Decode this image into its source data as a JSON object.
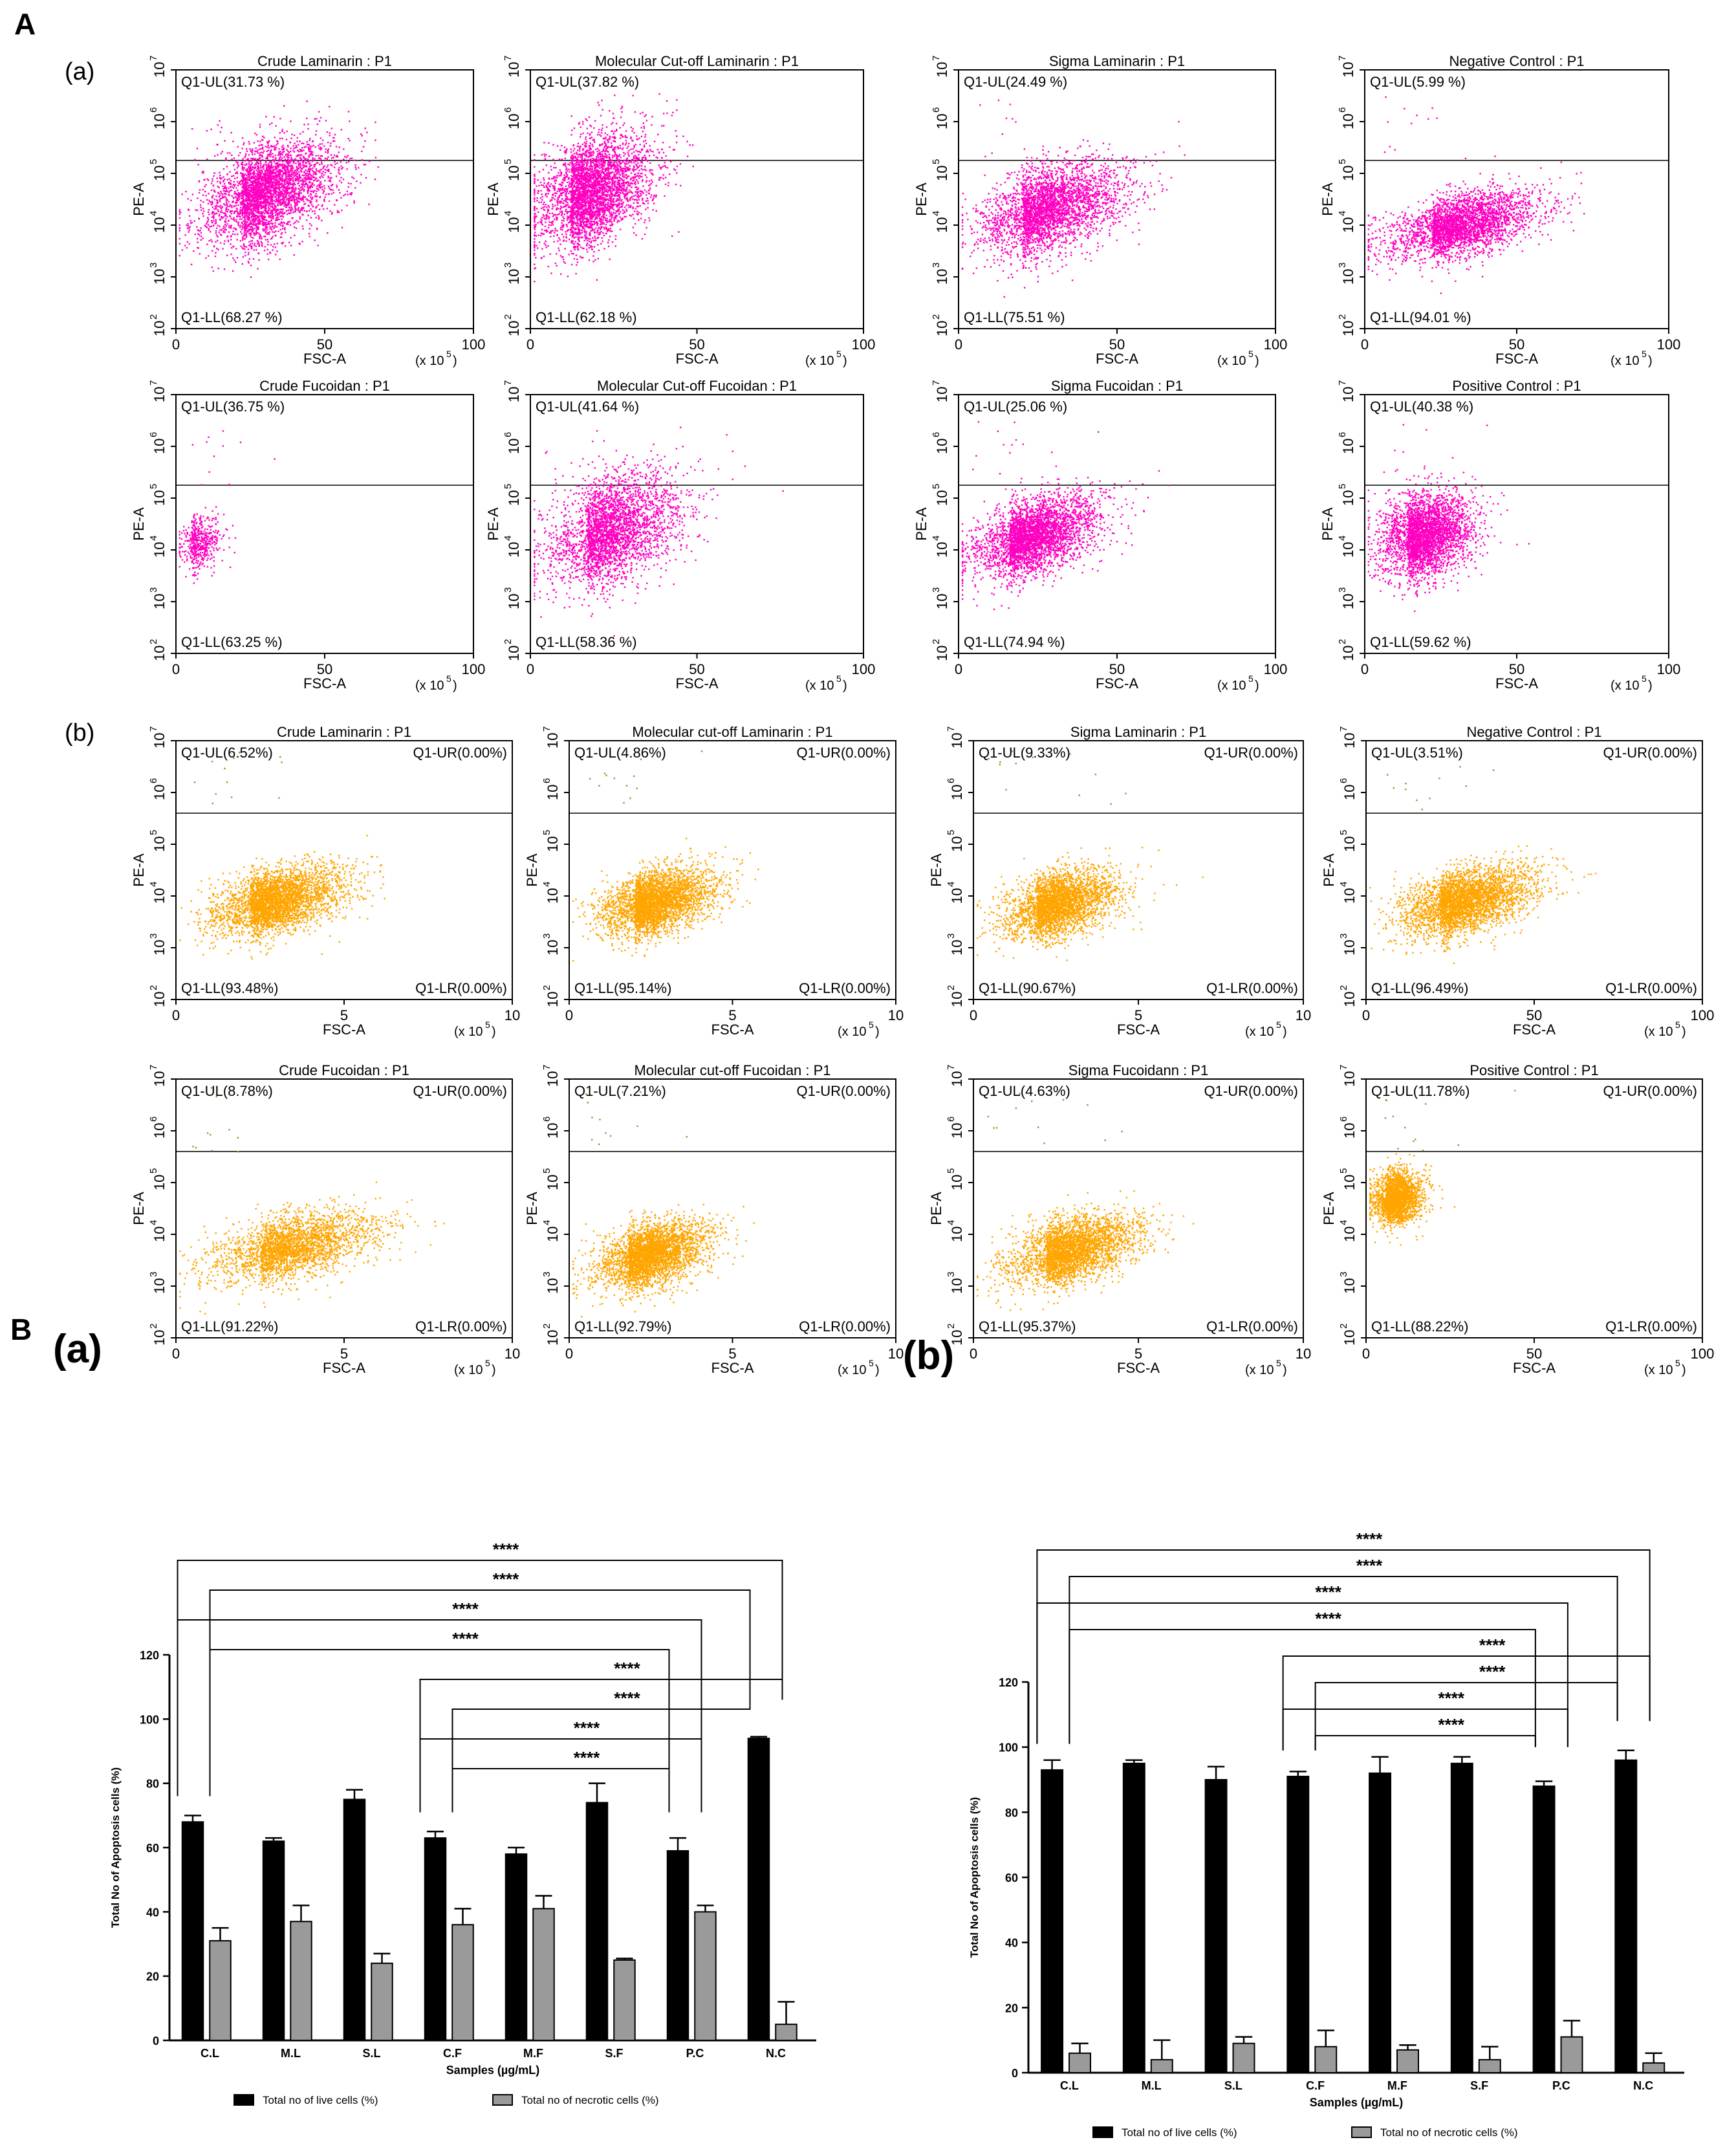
{
  "labels": {
    "A": "A",
    "B": "B",
    "Aa": "(a)",
    "Ab": "(b)",
    "Ba": "(a)",
    "Bb": "(b)"
  },
  "scatter_common": {
    "y_label": "PE-A",
    "x_label": "FSC-A",
    "x_unit": "(x 10",
    "x_unit_exp": "5",
    "x_unit_close": ")",
    "y_ticks": [
      "10",
      "10",
      "10",
      "10",
      "10",
      "10"
    ],
    "y_tick_exps": [
      "2",
      "3",
      "4",
      "5",
      "6",
      "7"
    ],
    "x_ticks_a": [
      "0",
      "50",
      "100"
    ],
    "x_ticks_b": [
      "0",
      "5",
      "10"
    ],
    "colors": {
      "magenta": "#ff00c0",
      "orange": "#ffa500",
      "green": "#6aaa2a"
    }
  },
  "chart_data": [
    {
      "type": "scatter",
      "group": "A(a)",
      "title": "Crude Laminarin : P1",
      "quadrants": {
        "UL": "Q1-UL(31.73 %)",
        "LL": "Q1-LL(68.27 %)"
      },
      "xlim": [
        0,
        100
      ],
      "ylim_log10": [
        2,
        7
      ],
      "gate_log10": 5.25
    },
    {
      "type": "scatter",
      "group": "A(a)",
      "title": "Molecular Cut-off Laminarin : P1",
      "quadrants": {
        "UL": "Q1-UL(37.82 %)",
        "LL": "Q1-LL(62.18 %)"
      },
      "xlim": [
        0,
        100
      ],
      "ylim_log10": [
        2,
        7
      ],
      "gate_log10": 5.25
    },
    {
      "type": "scatter",
      "group": "A(a)",
      "title": "Sigma Laminarin : P1",
      "quadrants": {
        "UL": "Q1-UL(24.49 %)",
        "LL": "Q1-LL(75.51 %)"
      },
      "xlim": [
        0,
        100
      ],
      "ylim_log10": [
        2,
        7
      ],
      "gate_log10": 5.25
    },
    {
      "type": "scatter",
      "group": "A(a)",
      "title": "Negative Control : P1",
      "quadrants": {
        "UL": "Q1-UL(5.99 %)",
        "LL": "Q1-LL(94.01 %)"
      },
      "xlim": [
        0,
        100
      ],
      "ylim_log10": [
        2,
        7
      ],
      "gate_log10": 5.25
    },
    {
      "type": "scatter",
      "group": "A(a)",
      "title": "Crude Fucoidan : P1",
      "quadrants": {
        "UL": "Q1-UL(36.75 %)",
        "LL": "Q1-LL(63.25 %)"
      },
      "xlim": [
        0,
        100
      ],
      "ylim_log10": [
        2,
        7
      ],
      "gate_log10": 5.25
    },
    {
      "type": "scatter",
      "group": "A(a)",
      "title": "Molecular Cut-off Fucoidan : P1",
      "quadrants": {
        "UL": "Q1-UL(41.64 %)",
        "LL": "Q1-LL(58.36 %)"
      },
      "xlim": [
        0,
        100
      ],
      "ylim_log10": [
        2,
        7
      ],
      "gate_log10": 5.25
    },
    {
      "type": "scatter",
      "group": "A(a)",
      "title": "Sigma Fucoidan : P1",
      "quadrants": {
        "UL": "Q1-UL(25.06 %)",
        "LL": "Q1-LL(74.94 %)"
      },
      "xlim": [
        0,
        100
      ],
      "ylim_log10": [
        2,
        7
      ],
      "gate_log10": 5.25
    },
    {
      "type": "scatter",
      "group": "A(a)",
      "title": "Positive Control : P1",
      "quadrants": {
        "UL": "Q1-UL(40.38 %)",
        "LL": "Q1-LL(59.62 %)"
      },
      "xlim": [
        0,
        100
      ],
      "ylim_log10": [
        2,
        7
      ],
      "gate_log10": 5.25
    },
    {
      "type": "scatter",
      "group": "A(b)",
      "title": "Crude Laminarin : P1",
      "quadrants": {
        "UL": "Q1-UL(6.52%)",
        "UR": "Q1-UR(0.00%)",
        "LL": "Q1-LL(93.48%)",
        "LR": "Q1-LR(0.00%)"
      },
      "xlim": [
        0,
        10
      ],
      "ylim_log10": [
        2,
        7
      ],
      "gate_log10": 5.6
    },
    {
      "type": "scatter",
      "group": "A(b)",
      "title": "Molecular cut-off Laminarin : P1",
      "quadrants": {
        "UL": "Q1-UL(4.86%)",
        "UR": "Q1-UR(0.00%)",
        "LL": "Q1-LL(95.14%)",
        "LR": "Q1-LR(0.00%)"
      },
      "xlim": [
        0,
        10
      ],
      "ylim_log10": [
        2,
        7
      ],
      "gate_log10": 5.6
    },
    {
      "type": "scatter",
      "group": "A(b)",
      "title": "Sigma Laminarin : P1",
      "quadrants": {
        "UL": "Q1-UL(9.33%)",
        "UR": "Q1-UR(0.00%)",
        "LL": "Q1-LL(90.67%)",
        "LR": "Q1-LR(0.00%)"
      },
      "xlim": [
        0,
        10
      ],
      "ylim_log10": [
        2,
        7
      ],
      "gate_log10": 5.6
    },
    {
      "type": "scatter",
      "group": "A(b)",
      "title": "Negative Control : P1",
      "quadrants": {
        "UL": "Q1-UL(3.51%)",
        "UR": "Q1-UR(0.00%)",
        "LL": "Q1-LL(96.49%)",
        "LR": "Q1-LR(0.00%)"
      },
      "xlim": [
        0,
        100
      ],
      "ylim_log10": [
        2,
        7
      ],
      "gate_log10": 5.6
    },
    {
      "type": "scatter",
      "group": "A(b)",
      "title": "Crude Fucoidan : P1",
      "quadrants": {
        "UL": "Q1-UL(8.78%)",
        "UR": "Q1-UR(0.00%)",
        "LL": "Q1-LL(91.22%)",
        "LR": "Q1-LR(0.00%)"
      },
      "xlim": [
        0,
        10
      ],
      "ylim_log10": [
        2,
        7
      ],
      "gate_log10": 5.6
    },
    {
      "type": "scatter",
      "group": "A(b)",
      "title": "Molecular cut-off Fucoidan : P1",
      "quadrants": {
        "UL": "Q1-UL(7.21%)",
        "UR": "Q1-UR(0.00%)",
        "LL": "Q1-LL(92.79%)",
        "LR": "Q1-LR(0.00%)"
      },
      "xlim": [
        0,
        10
      ],
      "ylim_log10": [
        2,
        7
      ],
      "gate_log10": 5.6
    },
    {
      "type": "scatter",
      "group": "A(b)",
      "title": "Sigma Fucoidann : P1",
      "quadrants": {
        "UL": "Q1-UL(4.63%)",
        "UR": "Q1-UR(0.00%)",
        "LL": "Q1-LL(95.37%)",
        "LR": "Q1-LR(0.00%)"
      },
      "xlim": [
        0,
        10
      ],
      "ylim_log10": [
        2,
        7
      ],
      "gate_log10": 5.6
    },
    {
      "type": "scatter",
      "group": "A(b)",
      "title": "Positive Control : P1",
      "quadrants": {
        "UL": "Q1-UL(11.78%)",
        "UR": "Q1-UR(0.00%)",
        "LL": "Q1-LL(88.22%)",
        "LR": "Q1-LR(0.00%)"
      },
      "xlim": [
        0,
        100
      ],
      "ylim_log10": [
        2,
        7
      ],
      "gate_log10": 5.6
    },
    {
      "type": "bar",
      "group": "B(a)",
      "categories": [
        "C.L",
        "M.L",
        "S.L",
        "C.F",
        "M.F",
        "S.F",
        "P.C",
        "N.C"
      ],
      "series": [
        {
          "name": "Total no of live cells (%)",
          "color": "#000000",
          "values": [
            68,
            62,
            75,
            63,
            58,
            74,
            59,
            94
          ],
          "errors": [
            2,
            1,
            3,
            2,
            2,
            6,
            4,
            0.5
          ]
        },
        {
          "name": "Total no of necrotic cells (%)",
          "color": "#9a9a9a",
          "values": [
            31,
            37,
            24,
            36,
            41,
            25,
            40,
            5
          ],
          "errors": [
            4,
            5,
            3,
            5,
            4,
            0.5,
            2,
            7
          ]
        }
      ],
      "xlabel": "Samples (µg/mL)",
      "ylabel": "Total No of Apoptosis cells (%)",
      "ylim": [
        0,
        120
      ],
      "yticks": [
        0,
        20,
        40,
        60,
        80,
        100,
        120
      ],
      "significance": [
        {
          "from": 0,
          "to": 7,
          "label": "****"
        },
        {
          "from": 0,
          "to": 7,
          "label": "****"
        },
        {
          "from": 0,
          "to": 6,
          "label": "****"
        },
        {
          "from": 0,
          "to": 6,
          "label": "****"
        },
        {
          "from": 3,
          "to": 7,
          "label": "****"
        },
        {
          "from": 3,
          "to": 7,
          "label": "****"
        },
        {
          "from": 3,
          "to": 6,
          "label": "****"
        },
        {
          "from": 3,
          "to": 6,
          "label": "****"
        }
      ]
    },
    {
      "type": "bar",
      "group": "B(b)",
      "categories": [
        "C.L",
        "M.L",
        "S.L",
        "C.F",
        "M.F",
        "S.F",
        "P.C",
        "N.C"
      ],
      "series": [
        {
          "name": "Total no of live cells (%)",
          "color": "#000000",
          "values": [
            93,
            95,
            90,
            91,
            92,
            95,
            88,
            96
          ],
          "errors": [
            3,
            1,
            4,
            1.5,
            5,
            2,
            1.5,
            3
          ]
        },
        {
          "name": "Total no of necrotic cells (%)",
          "color": "#9a9a9a",
          "values": [
            6,
            4,
            9,
            8,
            7,
            4,
            11,
            3
          ],
          "errors": [
            3,
            6,
            2,
            5,
            1.5,
            4,
            5,
            3
          ]
        }
      ],
      "xlabel": "Samples (µg/mL)",
      "ylabel": "Total No of Apoptosis cells (%)",
      "ylim": [
        0,
        120
      ],
      "yticks": [
        0,
        20,
        40,
        60,
        80,
        100,
        120
      ],
      "significance": [
        {
          "from": 0,
          "to": 7,
          "label": "****"
        },
        {
          "from": 0,
          "to": 7,
          "label": "****"
        },
        {
          "from": 0,
          "to": 6,
          "label": "****"
        },
        {
          "from": 0,
          "to": 6,
          "label": "****"
        },
        {
          "from": 3,
          "to": 7,
          "label": "****"
        },
        {
          "from": 3,
          "to": 7,
          "label": "****"
        },
        {
          "from": 3,
          "to": 6,
          "label": "****"
        },
        {
          "from": 3,
          "to": 6,
          "label": "****"
        }
      ]
    }
  ]
}
